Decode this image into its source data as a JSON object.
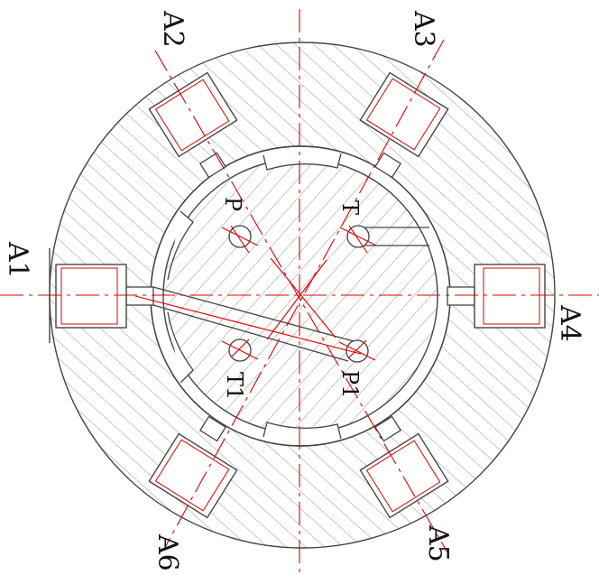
{
  "diagram": {
    "colors": {
      "outline": "#444444",
      "centerline": "#e00000",
      "hatch": "#8a8a8a",
      "background": "#ffffff"
    },
    "ports": [
      {
        "id": "a1",
        "label": "A1"
      },
      {
        "id": "a2",
        "label": "A2"
      },
      {
        "id": "a3",
        "label": "A3"
      },
      {
        "id": "a4",
        "label": "A4"
      },
      {
        "id": "a5",
        "label": "A5"
      },
      {
        "id": "a6",
        "label": "A6"
      }
    ],
    "holes": [
      {
        "id": "p",
        "label": "P"
      },
      {
        "id": "t",
        "label": "T"
      },
      {
        "id": "t1",
        "label": "T1"
      },
      {
        "id": "p1",
        "label": "P1"
      }
    ]
  }
}
